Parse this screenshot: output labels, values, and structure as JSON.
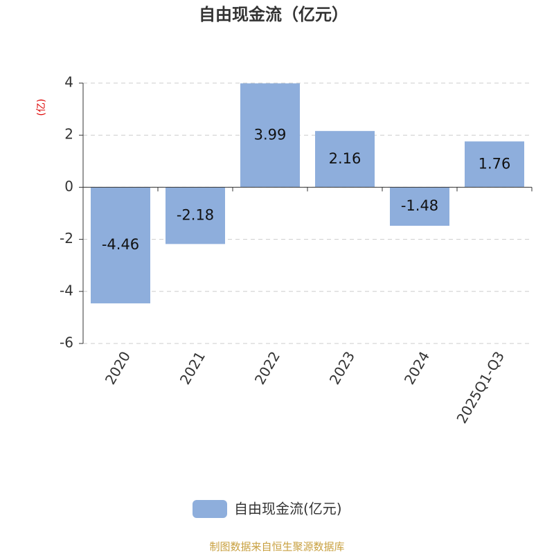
{
  "chart_data": {
    "type": "bar",
    "title": "自由现金流（亿元）",
    "y_axis_label": "(亿)",
    "categories": [
      "2020",
      "2021",
      "2022",
      "2023",
      "2024",
      "2025Q1-Q3"
    ],
    "series": [
      {
        "name": "自由现金流(亿元)",
        "color": "#8eaedc",
        "values": [
          -4.46,
          -2.18,
          3.99,
          2.16,
          -1.48,
          1.76
        ]
      }
    ],
    "ylim": [
      -6,
      4
    ],
    "yticks": [
      -6,
      -4,
      -2,
      0,
      2,
      4
    ],
    "grid": true,
    "source": "制图数据来自恒生聚源数据库"
  }
}
